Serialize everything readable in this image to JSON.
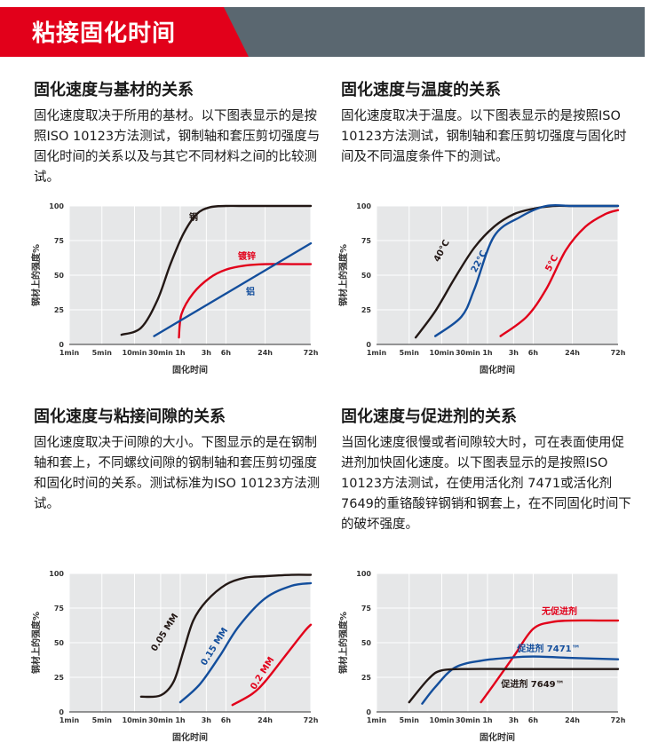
{
  "banner": {
    "title": "粘接固化时间",
    "red": "#e2001a",
    "gray": "#5a6770"
  },
  "sections": [
    {
      "title": "固化速度与基材的关系",
      "text": "固化速度取决于所用的基材。以下图表显示的是按照ISO 10123方法测试，钢制轴和套压剪切强度与固化时间的关系以及与其它不同材料之间的比较测试。"
    },
    {
      "title": "固化速度与温度的关系",
      "text": "固化速度取决于温度。以下图表显示的是按照ISO 10123方法测试，钢制轴和套压剪切强度与固化时间及不同温度条件下的测试。"
    },
    {
      "title": "固化速度与粘接间隙的关系",
      "text": "固化速度取决于间隙的大小。下图显示的是在钢制轴和套上，不同螺纹间隙的钢制轴和套压剪切强度和固化时间的关系。测试标准为ISO 10123方法测试。"
    },
    {
      "title": "固化速度与促进剂的关系",
      "text": "当固化速度很慢或者间隙较大时，可在表面使用促进剂加快固化速度。以下图表显示的是按照ISO 10123方法测试，在使用活化剂 7471或活化剂 7649的重铬酸锌钢销和钢套上，在不同固化时间下的破坏强度。"
    }
  ],
  "chart_data": [
    {
      "type": "line",
      "ylabel": "钢材上的强度%",
      "xlabel": "固化时间",
      "ylim": [
        0,
        100
      ],
      "yticks": [
        "0",
        "25",
        "50",
        "75",
        "100"
      ],
      "xticks": [
        "1min",
        "5min",
        "10min",
        "30min",
        "1h",
        "3h",
        "6h",
        "24h",
        "72h"
      ],
      "grid": true,
      "series": [
        {
          "name": "钢",
          "color": "#231815",
          "points": [
            [
              8,
              7
            ],
            [
              11,
              12
            ],
            [
              13.5,
              32
            ],
            [
              15.5,
              58
            ],
            [
              17.5,
              80
            ],
            [
              19.5,
              94
            ],
            [
              21.5,
              99
            ],
            [
              24,
              100
            ],
            [
              26,
              100
            ],
            [
              30,
              100
            ],
            [
              34,
              100
            ],
            [
              37,
              100
            ]
          ]
        },
        {
          "name": "镀锌",
          "color": "#e2001a",
          "points": [
            [
              16.8,
              5
            ],
            [
              17.2,
              22
            ],
            [
              19,
              37
            ],
            [
              21.5,
              48
            ],
            [
              24,
              54
            ],
            [
              27,
              57
            ],
            [
              30,
              58
            ],
            [
              34,
              58
            ],
            [
              37,
              58
            ]
          ]
        },
        {
          "name": "铝",
          "color": "#134e9c",
          "points": [
            [
              13,
              6
            ],
            [
              37,
              73
            ]
          ]
        }
      ]
    },
    {
      "type": "line",
      "ylabel": "钢材上的强度%",
      "xlabel": "固化时间",
      "ylim": [
        0,
        100
      ],
      "yticks": [
        "0",
        "25",
        "50",
        "75",
        "100"
      ],
      "xticks": [
        "1min",
        "5min",
        "10min",
        "30min",
        "1h",
        "3h",
        "6h",
        "24h",
        "72h"
      ],
      "grid": true,
      "series": [
        {
          "name": "40°C",
          "color": "#231815",
          "points": [
            [
              6,
              5
            ],
            [
              9,
              24
            ],
            [
              12,
              48
            ],
            [
              15,
              70
            ],
            [
              18,
              85
            ],
            [
              21,
              94
            ],
            [
              24,
              98
            ],
            [
              27,
              100
            ],
            [
              30,
              100
            ],
            [
              34,
              100
            ],
            [
              37,
              100
            ]
          ]
        },
        {
          "name": "22°C",
          "color": "#134e9c",
          "points": [
            [
              9,
              6
            ],
            [
              13,
              20
            ],
            [
              15,
              40
            ],
            [
              18,
              78
            ],
            [
              22,
              92
            ],
            [
              26,
              100
            ],
            [
              30,
              100
            ],
            [
              34,
              100
            ],
            [
              37,
              100
            ]
          ]
        },
        {
          "name": "5°C",
          "color": "#e2001a",
          "points": [
            [
              19,
              6
            ],
            [
              23,
              20
            ],
            [
              26,
              40
            ],
            [
              29,
              68
            ],
            [
              32,
              85
            ],
            [
              35,
              94
            ],
            [
              37,
              97
            ]
          ]
        }
      ]
    },
    {
      "type": "line",
      "ylabel": "钢材上的强度%",
      "xlabel": "固化时间",
      "ylim": [
        0,
        100
      ],
      "yticks": [
        "0",
        "25",
        "50",
        "75",
        "100"
      ],
      "xticks": [
        "1min",
        "5min",
        "10min",
        "30min",
        "1h",
        "3h",
        "6h",
        "24h",
        "72h"
      ],
      "grid": true,
      "series": [
        {
          "name": "0.05 MM",
          "color": "#231815",
          "points": [
            [
              11,
              11
            ],
            [
              14,
              12
            ],
            [
              16,
              22
            ],
            [
              17.5,
              44
            ],
            [
              19,
              66
            ],
            [
              21,
              80
            ],
            [
              24,
              92
            ],
            [
              27,
              97
            ],
            [
              30,
              98
            ],
            [
              34,
              99
            ],
            [
              37,
              99
            ]
          ]
        },
        {
          "name": "0.15 MM",
          "color": "#134e9c",
          "points": [
            [
              17,
              7
            ],
            [
              20,
              20
            ],
            [
              23,
              40
            ],
            [
              26,
              62
            ],
            [
              30,
              82
            ],
            [
              34,
              91
            ],
            [
              37,
              93
            ]
          ]
        },
        {
          "name": "0.2 MM",
          "color": "#e2001a",
          "points": [
            [
              25,
              5
            ],
            [
              28,
              13
            ],
            [
              30,
              22
            ],
            [
              33,
              40
            ],
            [
              36,
              58
            ],
            [
              37,
              63
            ]
          ]
        }
      ]
    },
    {
      "type": "line",
      "ylabel": "钢材上的强度%",
      "xlabel": "固化时间",
      "ylim": [
        0,
        100
      ],
      "yticks": [
        "0",
        "25",
        "50",
        "75",
        "100"
      ],
      "xticks": [
        "1min",
        "5min",
        "10min",
        "30min",
        "1h",
        "3h",
        "6h",
        "24h",
        "72h"
      ],
      "grid": true,
      "series": [
        {
          "name": "无促进剂",
          "color": "#e2001a",
          "points": [
            [
              16,
              7
            ],
            [
              18,
              20
            ],
            [
              21,
              40
            ],
            [
              24,
              60
            ],
            [
              27,
              65
            ],
            [
              30,
              66
            ],
            [
              34,
              66
            ],
            [
              37,
              66
            ]
          ]
        },
        {
          "name": "促进剂 7471™",
          "color": "#134e9c",
          "points": [
            [
              7,
              6
            ],
            [
              9,
              18
            ],
            [
              12,
              32
            ],
            [
              16,
              37
            ],
            [
              20,
              39
            ],
            [
              24,
              40
            ],
            [
              30,
              39
            ],
            [
              37,
              38
            ]
          ]
        },
        {
          "name": "促进剂 7649™",
          "color": "#231815",
          "points": [
            [
              5,
              7
            ],
            [
              8,
              24
            ],
            [
              10,
              30
            ],
            [
              14,
              31
            ],
            [
              20,
              31
            ],
            [
              26,
              31
            ],
            [
              32,
              31
            ],
            [
              37,
              31
            ]
          ]
        }
      ]
    }
  ]
}
